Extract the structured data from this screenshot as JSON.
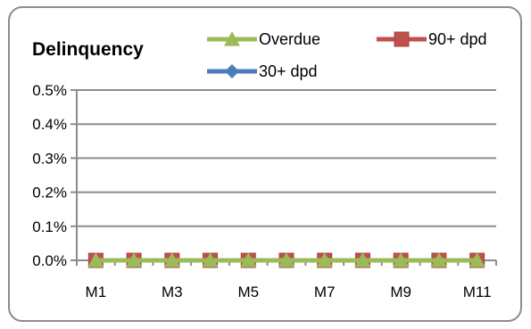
{
  "chart_data": {
    "type": "line",
    "title": "Delinquency",
    "xlabel": "",
    "ylabel": "",
    "categories": [
      "M1",
      "M2",
      "M3",
      "M4",
      "M5",
      "M6",
      "M7",
      "M8",
      "M9",
      "M10",
      "M11"
    ],
    "x_tick_labels": [
      "M1",
      "M3",
      "M5",
      "M7",
      "M9",
      "M11"
    ],
    "y_tick_labels": [
      "0.0%",
      "0.1%",
      "0.2%",
      "0.3%",
      "0.4%",
      "0.5%"
    ],
    "ylim": [
      0,
      0.5
    ],
    "y_ticks": [
      0,
      0.1,
      0.2,
      0.3,
      0.4,
      0.5
    ],
    "grid": true,
    "legend_position": "top",
    "series": [
      {
        "name": "30+ dpd",
        "values": [
          0,
          0,
          0,
          0,
          0,
          0,
          0,
          0,
          0,
          0,
          0
        ],
        "color": "#4a7ebb",
        "marker": "diamond"
      },
      {
        "name": "90+ dpd",
        "values": [
          0,
          0,
          0,
          0,
          0,
          0,
          0,
          0,
          0,
          0,
          0
        ],
        "color": "#c0504d",
        "marker": "square"
      },
      {
        "name": "Overdue",
        "values": [
          0,
          0,
          0,
          0,
          0,
          0,
          0,
          0,
          0,
          0,
          0
        ],
        "color": "#9bbb59",
        "marker": "triangle"
      }
    ],
    "legend_order": [
      "Overdue",
      "90+ dpd",
      "30+ dpd"
    ]
  }
}
